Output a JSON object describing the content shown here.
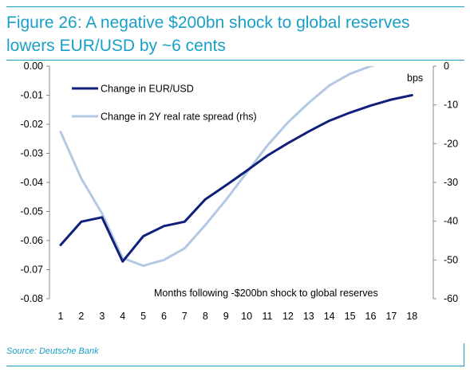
{
  "figure": {
    "title": "Figure 26:  A negative $200bn shock to global reserves\nlowers EUR/USD by ~6 cents",
    "source": "Source: Deutsche Bank"
  },
  "chart_data": {
    "type": "line",
    "title": "",
    "xlabel": "Months following -$200bn shock to global reserves",
    "ylabel": "",
    "y2label": "bps",
    "x": [
      1,
      2,
      3,
      4,
      5,
      6,
      7,
      8,
      9,
      10,
      11,
      12,
      13,
      14,
      15,
      16,
      17,
      18
    ],
    "ylim": [
      -0.08,
      0.0
    ],
    "y2lim": [
      -60,
      0
    ],
    "yticks": [
      "0.00",
      "-0.01",
      "-0.02",
      "-0.03",
      "-0.04",
      "-0.05",
      "-0.06",
      "-0.07",
      "-0.08"
    ],
    "y2ticks": [
      "0",
      "-10",
      "-20",
      "-30",
      "-40",
      "-50",
      "-60"
    ],
    "legend_position": "top-left",
    "grid": false,
    "series": [
      {
        "name": "Change in EUR/USD",
        "axis": "left",
        "color": "#0f1f7a",
        "values": [
          -0.0615,
          -0.0535,
          -0.052,
          -0.0672,
          -0.0585,
          -0.055,
          -0.0535,
          -0.0458,
          -0.041,
          -0.036,
          -0.0308,
          -0.0265,
          -0.0225,
          -0.0188,
          -0.016,
          -0.0136,
          -0.0115,
          -0.01
        ]
      },
      {
        "name": "Change in 2Y real rate spread (rhs)",
        "axis": "right",
        "color": "#b3c9e3",
        "values": [
          -17,
          -29,
          -38,
          -49.5,
          -51.5,
          -50,
          -47,
          -41,
          -34.5,
          -27.5,
          -20.5,
          -14.5,
          -9.5,
          -5,
          -2,
          0,
          1.5,
          3
        ]
      }
    ]
  }
}
